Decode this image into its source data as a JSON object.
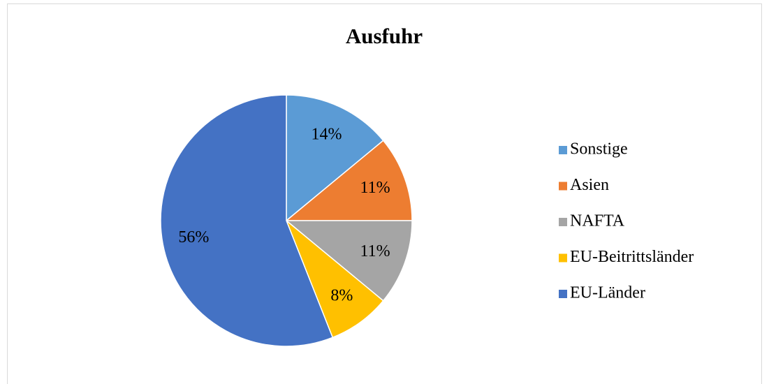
{
  "chart_data": {
    "type": "pie",
    "title": "Ausfuhr",
    "categories": [
      "Sonstige",
      "Asien",
      "NAFTA",
      "EU-Beitrittsländer",
      "EU-Länder"
    ],
    "values": [
      14,
      11,
      11,
      8,
      56
    ],
    "value_labels": [
      "14%",
      "11%",
      "11%",
      "8%",
      "56%"
    ],
    "colors": [
      "#5b9bd5",
      "#ed7d31",
      "#a5a5a5",
      "#ffc000",
      "#4472c4"
    ],
    "legend": "right"
  }
}
